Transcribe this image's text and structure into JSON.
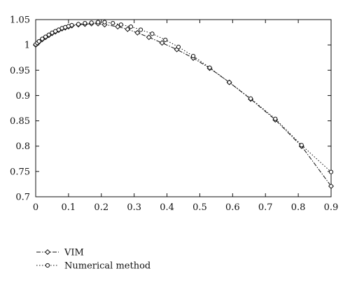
{
  "chart_data": {
    "type": "line",
    "title": "",
    "xlabel": "",
    "ylabel": "",
    "xlim": [
      0,
      0.9
    ],
    "ylim": [
      0.7,
      1.05
    ],
    "x_ticks": [
      "0",
      "0.1",
      "0.2",
      "0.3",
      "0.4",
      "0.5",
      "0.6",
      "0.7",
      "0.8",
      "0.9"
    ],
    "y_ticks": [
      "0.7",
      "0.75",
      "0.8",
      "0.85",
      "0.9",
      "0.95",
      "1",
      "1.05"
    ],
    "grid": false,
    "legend_position": "bottom-left, outside plot",
    "series": [
      {
        "name": "VIM",
        "line_style": "dash-dot",
        "marker": "diamond",
        "color": "#111111",
        "x": [
          0,
          0.005,
          0.01,
          0.02,
          0.03,
          0.04,
          0.05,
          0.06,
          0.07,
          0.08,
          0.09,
          0.1,
          0.11,
          0.13,
          0.15,
          0.17,
          0.19,
          0.21,
          0.25,
          0.28,
          0.31,
          0.345,
          0.385,
          0.43,
          0.48,
          0.53,
          0.59,
          0.655,
          0.73,
          0.81,
          0.9
        ],
        "y": [
          1.0,
          1.003,
          1.006,
          1.011,
          1.015,
          1.019,
          1.023,
          1.026,
          1.029,
          1.032,
          1.034,
          1.036,
          1.038,
          1.04,
          1.041,
          1.042,
          1.042,
          1.04,
          1.036,
          1.031,
          1.024,
          1.015,
          1.004,
          0.991,
          0.974,
          0.954,
          0.926,
          0.893,
          0.852,
          0.8,
          0.721
        ]
      },
      {
        "name": "Numerical method",
        "line_style": "dotted",
        "marker": "circle",
        "color": "#111111",
        "x": [
          0,
          0.005,
          0.01,
          0.02,
          0.03,
          0.04,
          0.05,
          0.06,
          0.07,
          0.08,
          0.09,
          0.1,
          0.11,
          0.13,
          0.15,
          0.17,
          0.19,
          0.21,
          0.235,
          0.26,
          0.29,
          0.32,
          0.355,
          0.395,
          0.435,
          0.48,
          0.53,
          0.59,
          0.655,
          0.73,
          0.81,
          0.9
        ],
        "y": [
          1.001,
          1.004,
          1.007,
          1.012,
          1.016,
          1.02,
          1.024,
          1.027,
          1.03,
          1.033,
          1.035,
          1.037,
          1.039,
          1.041,
          1.043,
          1.044,
          1.045,
          1.045,
          1.043,
          1.04,
          1.036,
          1.03,
          1.022,
          1.01,
          0.996,
          0.978,
          0.955,
          0.926,
          0.894,
          0.854,
          0.802,
          0.749
        ]
      }
    ]
  }
}
